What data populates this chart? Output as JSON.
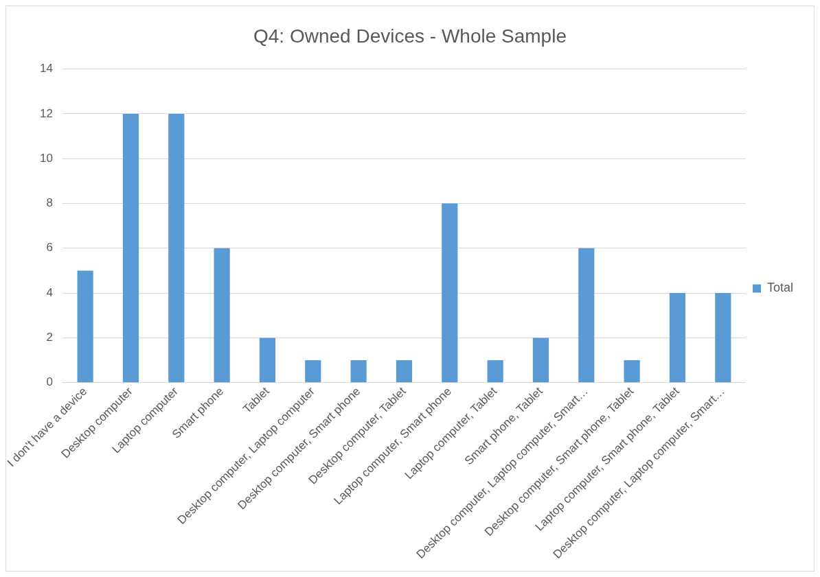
{
  "chart_data": {
    "type": "bar",
    "title": "Q4: Owned Devices - Whole Sample",
    "categories": [
      "I don't have a device",
      "Desktop computer",
      "Laptop computer",
      "Smart phone",
      "Tablet",
      "Desktop computer, Laptop computer",
      "Desktop computer, Smart phone",
      "Desktop computer, Tablet",
      "Laptop computer, Smart phone",
      "Laptop computer, Tablet",
      "Smart phone, Tablet",
      "Desktop computer, Laptop computer, Smart…",
      "Desktop computer, Smart phone, Tablet",
      "Laptop computer, Smart phone, Tablet",
      "Desktop computer, Laptop computer, Smart…"
    ],
    "series": [
      {
        "name": "Total",
        "color": "#5b9bd5",
        "values": [
          5,
          12,
          12,
          6,
          2,
          1,
          1,
          1,
          8,
          1,
          2,
          6,
          1,
          4,
          4
        ]
      }
    ],
    "ylim": [
      0,
      14
    ],
    "yticks": [
      0,
      2,
      4,
      6,
      8,
      10,
      12,
      14
    ],
    "grid": "y",
    "legend": "right"
  }
}
